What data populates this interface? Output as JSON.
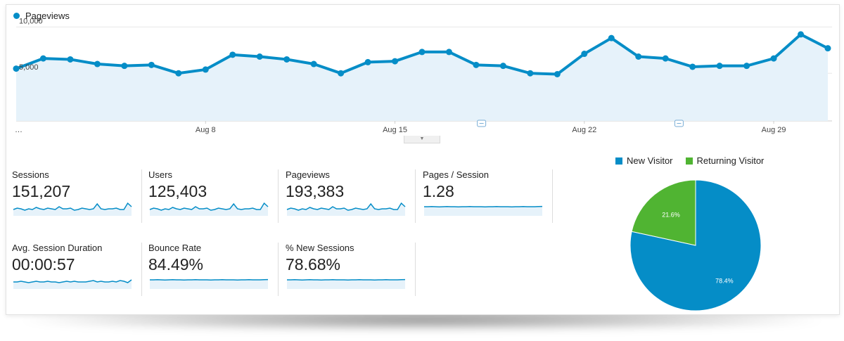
{
  "main_chart": {
    "legend_label": "Pageviews",
    "y_ticks": [
      "10,000",
      "5,000"
    ],
    "x_start_label": "…",
    "x_labels": [
      "Aug 8",
      "Aug 15",
      "Aug 22",
      "Aug 29"
    ],
    "color": "#058dc7",
    "fill": "#e6f2fa"
  },
  "chart_data": {
    "type": "area",
    "series": [
      {
        "name": "Pageviews",
        "values": [
          5500,
          6600,
          6500,
          6000,
          5800,
          5900,
          5000,
          5400,
          7000,
          6800,
          6500,
          6000,
          5000,
          6200,
          6300,
          7300,
          7300,
          5900,
          5800,
          5000,
          4900,
          7100,
          8800,
          6800,
          6600,
          5700,
          5800,
          5800,
          6600,
          9200,
          7700
        ]
      }
    ],
    "x_tick_labels": [
      "Aug 8",
      "Aug 15",
      "Aug 22",
      "Aug 29"
    ],
    "ylim": [
      0,
      10000
    ],
    "y_ticks": [
      5000,
      10000
    ],
    "grid": true
  },
  "metrics": [
    {
      "label": "Sessions",
      "value": "151,207"
    },
    {
      "label": "Users",
      "value": "125,403"
    },
    {
      "label": "Pageviews",
      "value": "193,383"
    },
    {
      "label": "Pages / Session",
      "value": "1.28"
    },
    {
      "label": "Avg. Session Duration",
      "value": "00:00:57"
    },
    {
      "label": "Bounce Rate",
      "value": "84.49%"
    },
    {
      "label": "% New Sessions",
      "value": "78.68%"
    }
  ],
  "pie": {
    "legend": [
      {
        "label": "New Visitor",
        "color": "#058dc7"
      },
      {
        "label": "Returning Visitor",
        "color": "#50b432"
      }
    ],
    "slices": [
      {
        "label": "78.4%",
        "value": 78.4,
        "color": "#058dc7"
      },
      {
        "label": "21.6%",
        "value": 21.6,
        "color": "#50b432"
      }
    ]
  }
}
